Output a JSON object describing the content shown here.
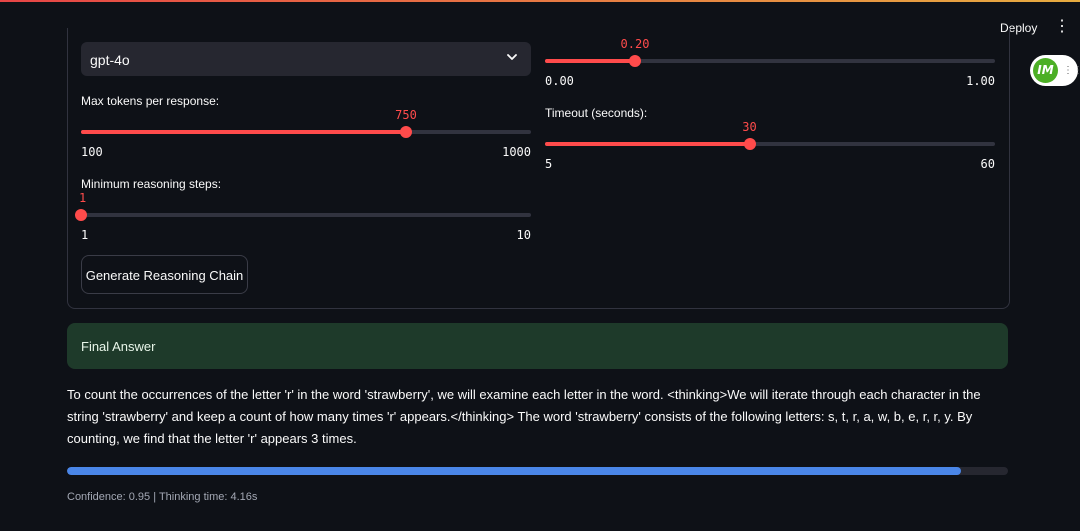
{
  "header": {
    "deploy_label": "Deploy",
    "menu_icon": "more-vertical-icon"
  },
  "badge": {
    "logo_text": "IM",
    "icon": "drag-grip-icon"
  },
  "model_select": {
    "value": "gpt-4o",
    "icon": "chevron-down-icon"
  },
  "sliders": {
    "temperature": {
      "label": "",
      "value": 0.2,
      "value_text": "0.20",
      "min": 0,
      "max": 1,
      "min_text": "0.00",
      "max_text": "1.00"
    },
    "max_tokens": {
      "label": "Max tokens per response:",
      "value": 750,
      "value_text": "750",
      "min": 100,
      "max": 1000,
      "min_text": "100",
      "max_text": "1000"
    },
    "timeout": {
      "label": "Timeout (seconds):",
      "value": 30,
      "value_text": "30",
      "min": 5,
      "max": 60,
      "min_text": "5",
      "max_text": "60"
    },
    "min_steps": {
      "label": "Minimum reasoning steps:",
      "value": 1,
      "value_text": "1",
      "min": 1,
      "max": 10,
      "min_text": "1",
      "max_text": "10"
    }
  },
  "generate_button": {
    "label": "Generate Reasoning Chain"
  },
  "final_answer": {
    "label": "Final Answer"
  },
  "answer_text": "To count the occurrences of the letter 'r' in the word 'strawberry', we will examine each letter in the word. <thinking>We will iterate through each character in the string 'strawberry' and keep a count of how many times 'r' appears.</thinking> The word 'strawberry' consists of the following letters: s, t, r, a, w, b, e, r, r, y. By counting, we find that the letter 'r' appears 3 times.",
  "progress": {
    "fraction": 0.95
  },
  "status_caption": "Confidence: 0.95 | Thinking time: 4.16s",
  "colors": {
    "accent": "#ff4b4b",
    "progress": "#4a86e8",
    "success_bg": "#1e3a2a",
    "background": "#0e1117"
  }
}
